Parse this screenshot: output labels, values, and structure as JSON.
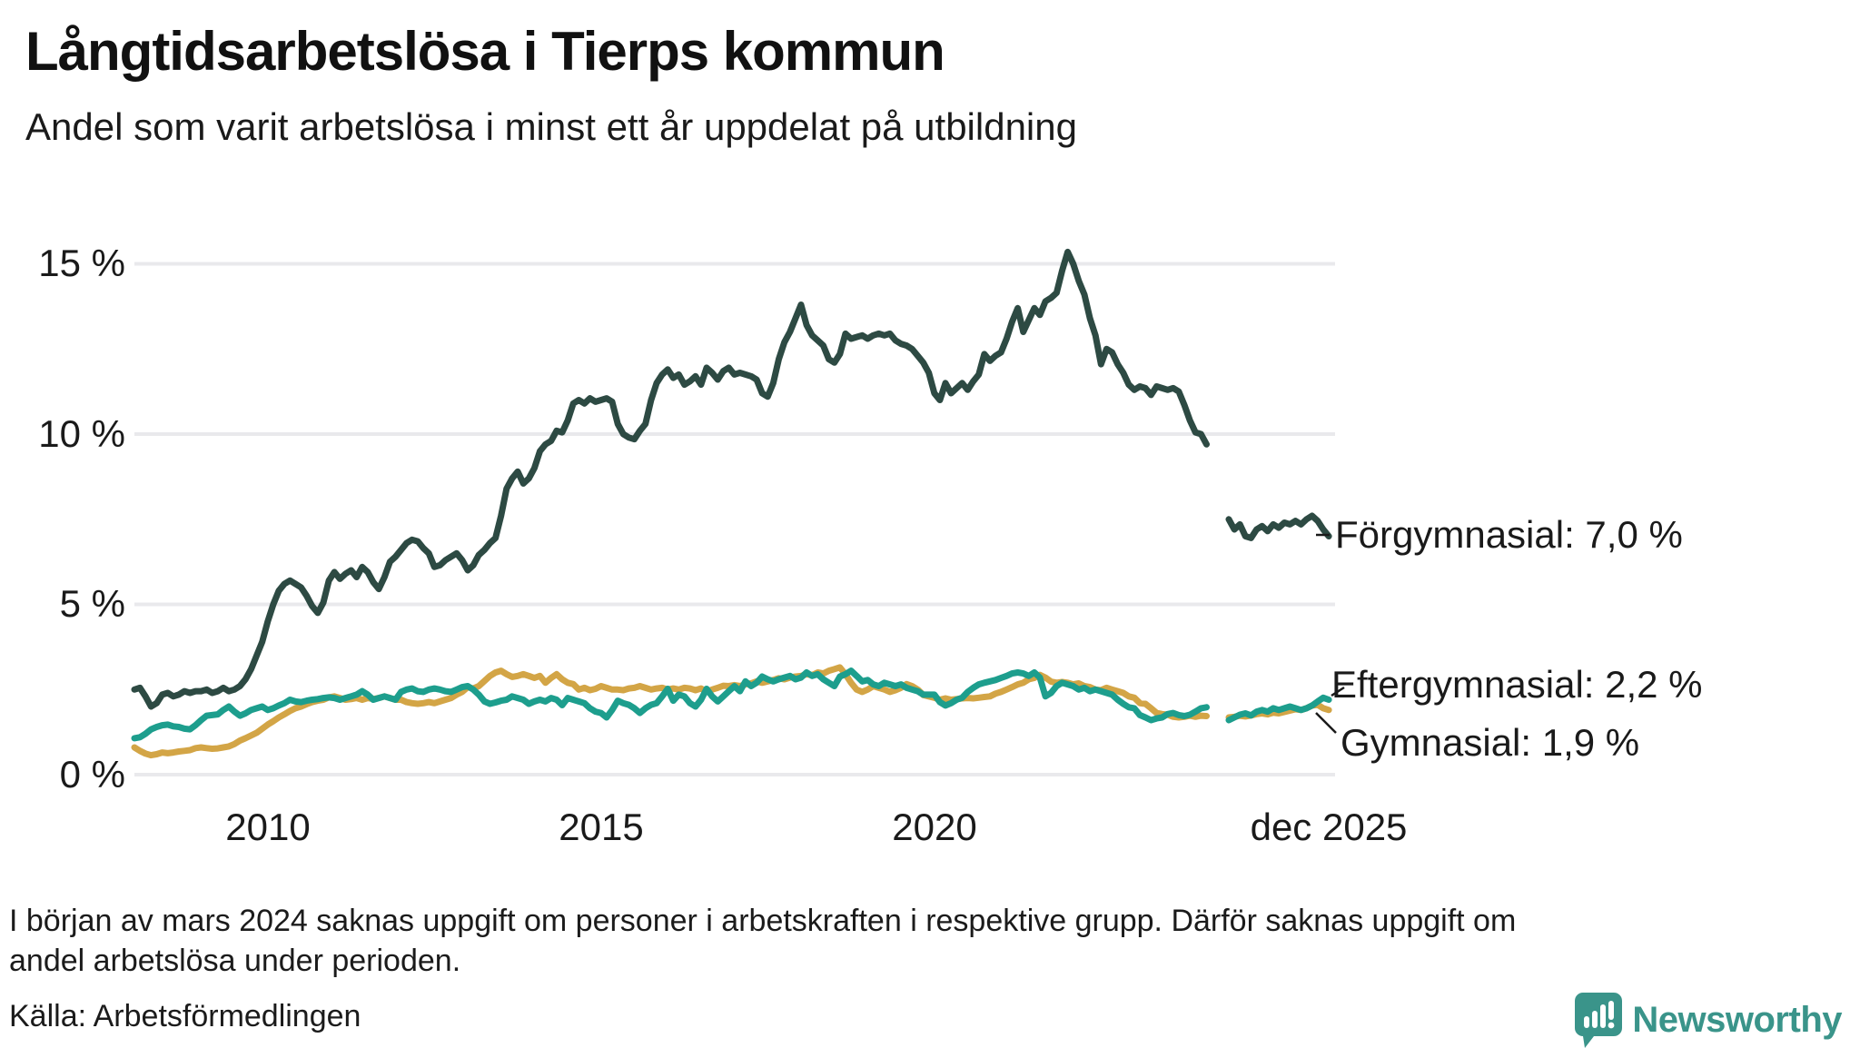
{
  "header": {
    "title": "Långtidsarbetslösa i Tierps kommun",
    "subtitle": "Andel som varit arbetslösa i minst ett år uppdelat på utbildning"
  },
  "chart_data": {
    "type": "line",
    "title": "Långtidsarbetslösa i Tierps kommun",
    "subtitle": "Andel som varit arbetslösa i minst ett år uppdelat på utbildning",
    "unit": "%",
    "x_start": "jan 2008",
    "x_end": "dec 2025",
    "x_step_months": 1,
    "gap_note": "värden saknas mars–maj 2024",
    "grid": "horizontal",
    "y_axis": {
      "ticks": [
        {
          "label": "0 %",
          "value": 0
        },
        {
          "label": "5 %",
          "value": 5
        },
        {
          "label": "10 %",
          "value": 10
        },
        {
          "label": "15 %",
          "value": 15
        }
      ],
      "range": [
        0,
        16
      ]
    },
    "x_axis": {
      "ticks": [
        {
          "label": "2010"
        },
        {
          "label": "2015"
        },
        {
          "label": "2020"
        },
        {
          "label": "dec 2025"
        }
      ]
    },
    "series": [
      {
        "name": "Förgymnasial",
        "end_label": "Förgymnasial: 7,0 %",
        "end_value": "7,0 %",
        "color": "#2d4a43",
        "values": [
          2.5,
          2.55,
          2.3,
          2.0,
          2.1,
          2.35,
          2.4,
          2.3,
          2.35,
          2.45,
          2.4,
          2.45,
          2.45,
          2.5,
          2.4,
          2.45,
          2.55,
          2.45,
          2.5,
          2.6,
          2.8,
          3.1,
          3.5,
          3.9,
          4.5,
          5.0,
          5.4,
          5.6,
          5.7,
          5.6,
          5.5,
          5.25,
          4.95,
          4.75,
          5.05,
          5.7,
          5.95,
          5.75,
          5.9,
          6.0,
          5.8,
          6.1,
          5.95,
          5.65,
          5.45,
          5.8,
          6.25,
          6.4,
          6.6,
          6.8,
          6.9,
          6.85,
          6.65,
          6.5,
          6.1,
          6.15,
          6.3,
          6.4,
          6.5,
          6.3,
          6.0,
          6.15,
          6.45,
          6.6,
          6.8,
          6.95,
          7.6,
          8.4,
          8.7,
          8.9,
          8.55,
          8.7,
          9.0,
          9.5,
          9.7,
          9.8,
          10.1,
          10.05,
          10.4,
          10.9,
          11.0,
          10.9,
          11.05,
          10.95,
          11.0,
          11.05,
          10.95,
          10.3,
          10.0,
          9.9,
          9.85,
          10.1,
          10.3,
          11.0,
          11.5,
          11.75,
          11.9,
          11.65,
          11.75,
          11.45,
          11.55,
          11.7,
          11.45,
          11.95,
          11.8,
          11.6,
          11.85,
          11.95,
          11.75,
          11.8,
          11.75,
          11.7,
          11.6,
          11.2,
          11.1,
          11.5,
          12.2,
          12.7,
          13.0,
          13.4,
          13.8,
          13.2,
          12.9,
          12.75,
          12.6,
          12.2,
          12.1,
          12.35,
          12.95,
          12.8,
          12.85,
          12.9,
          12.8,
          12.9,
          12.95,
          12.9,
          12.95,
          12.75,
          12.65,
          12.6,
          12.5,
          12.3,
          12.1,
          11.8,
          11.2,
          11.0,
          11.5,
          11.2,
          11.35,
          11.5,
          11.3,
          11.55,
          11.75,
          12.35,
          12.15,
          12.3,
          12.4,
          12.8,
          13.3,
          13.7,
          13.0,
          13.35,
          13.7,
          13.5,
          13.9,
          14.0,
          14.15,
          14.8,
          15.35,
          15.0,
          14.5,
          14.1,
          13.4,
          12.9,
          12.05,
          12.5,
          12.4,
          12.05,
          11.8,
          11.45,
          11.3,
          11.4,
          11.35,
          11.15,
          11.4,
          11.35,
          11.3,
          11.35,
          11.25,
          10.85,
          10.4,
          10.05,
          10.0,
          9.7,
          null,
          null,
          null,
          7.5,
          7.2,
          7.35,
          7.0,
          6.95,
          7.2,
          7.3,
          7.15,
          7.35,
          7.25,
          7.4,
          7.35,
          7.45,
          7.35,
          7.5,
          7.6,
          7.45,
          7.2,
          7.0
        ]
      },
      {
        "name": "Eftergymnasial",
        "end_label": "Eftergymnasial: 2,2 %",
        "end_value": "2,2 %",
        "color": "#1d9e8d",
        "values": [
          1.07,
          1.1,
          1.2,
          1.33,
          1.4,
          1.45,
          1.47,
          1.42,
          1.4,
          1.35,
          1.33,
          1.45,
          1.6,
          1.73,
          1.75,
          1.77,
          1.9,
          2.0,
          1.85,
          1.73,
          1.8,
          1.9,
          1.95,
          2.0,
          1.9,
          1.95,
          2.03,
          2.1,
          2.2,
          2.15,
          2.13,
          2.17,
          2.2,
          2.22,
          2.25,
          2.27,
          2.25,
          2.2,
          2.25,
          2.3,
          2.35,
          2.45,
          2.35,
          2.2,
          2.25,
          2.3,
          2.25,
          2.2,
          2.43,
          2.5,
          2.53,
          2.45,
          2.43,
          2.5,
          2.53,
          2.5,
          2.45,
          2.43,
          2.5,
          2.57,
          2.6,
          2.5,
          2.35,
          2.15,
          2.08,
          2.12,
          2.17,
          2.2,
          2.3,
          2.25,
          2.2,
          2.08,
          2.15,
          2.2,
          2.15,
          2.25,
          2.2,
          2.04,
          2.25,
          2.2,
          2.15,
          2.1,
          1.95,
          1.85,
          1.81,
          1.68,
          1.9,
          2.17,
          2.1,
          2.05,
          1.95,
          1.81,
          1.95,
          2.05,
          2.1,
          2.3,
          2.52,
          2.17,
          2.35,
          2.3,
          2.1,
          2.0,
          2.2,
          2.52,
          2.3,
          2.15,
          2.3,
          2.45,
          2.6,
          2.45,
          2.74,
          2.6,
          2.7,
          2.88,
          2.8,
          2.74,
          2.8,
          2.85,
          2.9,
          2.8,
          2.85,
          3.0,
          2.9,
          2.95,
          2.8,
          2.7,
          2.6,
          2.88,
          2.95,
          3.05,
          2.9,
          2.74,
          2.78,
          2.65,
          2.6,
          2.7,
          2.65,
          2.6,
          2.65,
          2.55,
          2.5,
          2.45,
          2.35,
          2.35,
          2.35,
          2.13,
          2.03,
          2.1,
          2.2,
          2.26,
          2.43,
          2.55,
          2.65,
          2.7,
          2.74,
          2.78,
          2.84,
          2.9,
          2.97,
          3.0,
          2.97,
          2.9,
          3.0,
          2.85,
          2.3,
          2.4,
          2.6,
          2.7,
          2.65,
          2.6,
          2.5,
          2.55,
          2.45,
          2.5,
          2.45,
          2.4,
          2.35,
          2.2,
          2.08,
          1.98,
          1.95,
          1.75,
          1.68,
          1.6,
          1.65,
          1.68,
          1.78,
          1.81,
          1.75,
          1.72,
          1.76,
          1.85,
          1.95,
          1.98,
          null,
          null,
          null,
          1.6,
          1.68,
          1.76,
          1.8,
          1.74,
          1.85,
          1.9,
          1.85,
          1.95,
          1.9,
          1.95,
          2.0,
          1.95,
          1.9,
          1.95,
          2.03,
          2.15,
          2.26,
          2.2
        ]
      },
      {
        "name": "Gymnasial",
        "end_label": "Gymnasial: 1,9 %",
        "end_value": "1,9 %",
        "color": "#d3a546",
        "values": [
          0.8,
          0.7,
          0.62,
          0.57,
          0.6,
          0.65,
          0.63,
          0.65,
          0.68,
          0.7,
          0.72,
          0.78,
          0.8,
          0.78,
          0.76,
          0.77,
          0.8,
          0.83,
          0.9,
          1.0,
          1.07,
          1.15,
          1.23,
          1.35,
          1.47,
          1.57,
          1.68,
          1.77,
          1.87,
          1.95,
          2.0,
          2.07,
          2.13,
          2.17,
          2.2,
          2.27,
          2.3,
          2.25,
          2.2,
          2.22,
          2.25,
          2.2,
          2.25,
          2.22,
          2.25,
          2.3,
          2.25,
          2.2,
          2.2,
          2.13,
          2.1,
          2.08,
          2.1,
          2.13,
          2.1,
          2.15,
          2.2,
          2.25,
          2.35,
          2.43,
          2.57,
          2.53,
          2.6,
          2.75,
          2.9,
          3.0,
          3.05,
          2.95,
          2.87,
          2.9,
          2.95,
          2.9,
          2.84,
          2.9,
          2.7,
          2.84,
          2.95,
          2.8,
          2.7,
          2.66,
          2.5,
          2.55,
          2.48,
          2.52,
          2.6,
          2.55,
          2.5,
          2.5,
          2.48,
          2.53,
          2.55,
          2.6,
          2.55,
          2.5,
          2.53,
          2.55,
          2.5,
          2.53,
          2.5,
          2.55,
          2.53,
          2.48,
          2.53,
          2.43,
          2.5,
          2.55,
          2.61,
          2.6,
          2.63,
          2.6,
          2.65,
          2.68,
          2.74,
          2.7,
          2.74,
          2.78,
          2.83,
          2.8,
          2.85,
          2.88,
          2.9,
          2.95,
          2.92,
          3.0,
          2.97,
          3.05,
          3.1,
          3.15,
          2.95,
          2.7,
          2.5,
          2.43,
          2.5,
          2.6,
          2.55,
          2.5,
          2.43,
          2.48,
          2.55,
          2.66,
          2.6,
          2.5,
          2.34,
          2.3,
          2.26,
          2.2,
          2.24,
          2.2,
          2.22,
          2.24,
          2.25,
          2.24,
          2.26,
          2.28,
          2.3,
          2.38,
          2.43,
          2.5,
          2.57,
          2.65,
          2.7,
          2.8,
          2.84,
          2.93,
          2.85,
          2.73,
          2.7,
          2.72,
          2.7,
          2.65,
          2.68,
          2.6,
          2.57,
          2.5,
          2.48,
          2.55,
          2.5,
          2.45,
          2.4,
          2.3,
          2.26,
          2.1,
          2.08,
          1.95,
          1.81,
          1.78,
          1.76,
          1.7,
          1.68,
          1.7,
          1.73,
          1.7,
          1.73,
          1.72,
          null,
          null,
          null,
          1.68,
          1.7,
          1.73,
          1.71,
          1.74,
          1.78,
          1.8,
          1.77,
          1.82,
          1.8,
          1.84,
          1.88,
          1.92,
          1.9,
          1.95,
          2.03,
          2.05,
          1.95,
          1.9
        ]
      }
    ],
    "colors": {
      "grid": "#e9e9ec",
      "text": "#1a1a1a"
    }
  },
  "footer": {
    "note_line1": "I början av mars 2024 saknas uppgift om personer i arbetskraften i respektive grupp. Därför saknas uppgift om",
    "note_line2": "andel arbetslösa under perioden.",
    "source": "Källa: Arbetsförmedlingen"
  },
  "branding": {
    "name": "Newsworthy",
    "color": "#3a948a"
  }
}
